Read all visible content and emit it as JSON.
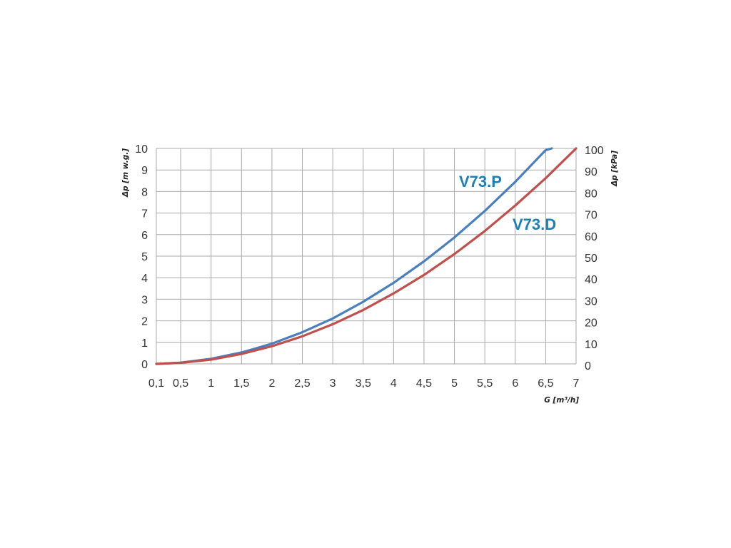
{
  "chart_data": {
    "type": "line",
    "x_ticks": [
      "0,1",
      "0,5",
      "1",
      "1,5",
      "2",
      "2,5",
      "3",
      "3,5",
      "4",
      "4,5",
      "5",
      "5,5",
      "6",
      "6,5",
      "7"
    ],
    "x_tick_values": [
      0.1,
      0.5,
      1,
      1.5,
      2,
      2.5,
      3,
      3.5,
      4,
      4.5,
      5,
      5.5,
      6,
      6.5,
      7
    ],
    "xlim": [
      0.1,
      7
    ],
    "y_left_ticks": [
      "0",
      "1",
      "2",
      "3",
      "4",
      "5",
      "6",
      "7",
      "8",
      "9",
      "10"
    ],
    "ylim_left": [
      0,
      10
    ],
    "y_right_ticks": [
      "0",
      "10",
      "20",
      "30",
      "40",
      "50",
      "60",
      "70",
      "80",
      "90",
      "100"
    ],
    "ylim_right": [
      0,
      100
    ],
    "xlabel": "G [m³/h]",
    "ylabel_left": "Δp [m w.g.]",
    "ylabel_right": "Δp [kPa]",
    "grid": true,
    "series": [
      {
        "name": "V73.P",
        "color": "#4a7fbf",
        "x": [
          0.1,
          0.5,
          1,
          1.5,
          2,
          2.5,
          3,
          3.5,
          4,
          4.5,
          5,
          5.5,
          6,
          6.5,
          6.6
        ],
        "y": [
          0.0,
          0.06,
          0.24,
          0.53,
          0.94,
          1.47,
          2.11,
          2.88,
          3.76,
          4.76,
          5.87,
          7.1,
          8.45,
          9.92,
          10.0
        ]
      },
      {
        "name": "V73.D",
        "color": "#c0504d",
        "x": [
          0.1,
          0.5,
          1,
          1.5,
          2,
          2.5,
          3,
          3.5,
          4,
          4.5,
          5,
          5.5,
          6,
          6.5,
          7
        ],
        "y": [
          0.0,
          0.05,
          0.2,
          0.46,
          0.82,
          1.28,
          1.84,
          2.5,
          3.27,
          4.13,
          5.1,
          6.17,
          7.35,
          8.62,
          10.0
        ]
      }
    ]
  }
}
